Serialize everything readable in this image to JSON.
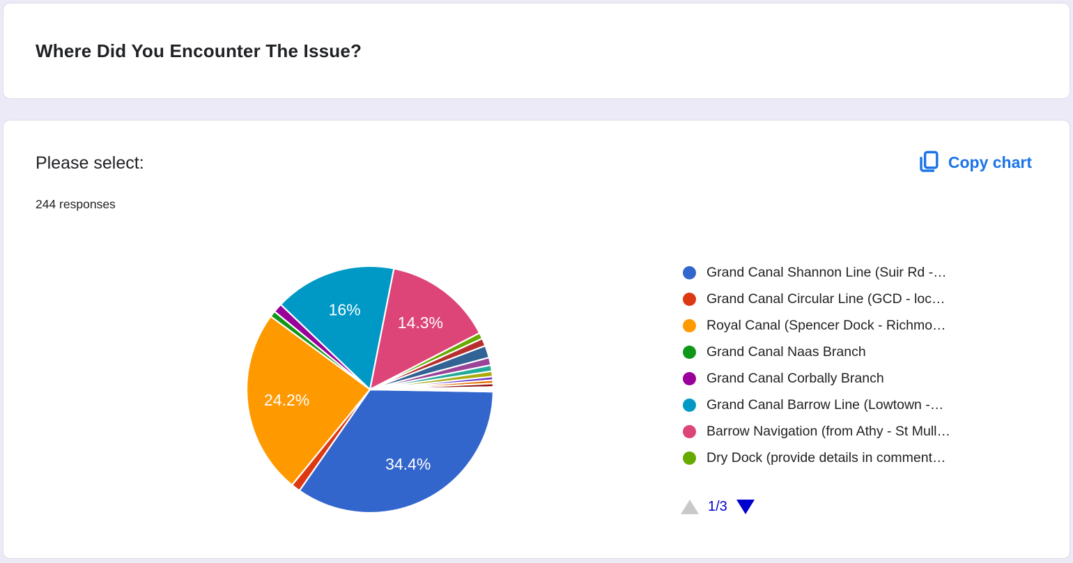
{
  "page": {
    "background": "#ECEAF6",
    "accent_blue": "#1A73E8",
    "pager_blue": "#0000CC",
    "pager_disabled_gray": "#C9C9C9"
  },
  "question_card": {
    "title": "Where Did You Encounter The Issue?"
  },
  "chart_card": {
    "title": "Please select:",
    "responses_count": "244 responses",
    "copy_button_label": "Copy chart"
  },
  "legend": {
    "visible_count": 8,
    "pager": {
      "label": "1/3",
      "current_page": 1,
      "total_pages": 3,
      "prev_enabled": false,
      "next_enabled": true
    }
  },
  "chart_data": {
    "type": "pie",
    "title": "Please select:",
    "total_responses": 244,
    "start_angle_deg": 91,
    "direction": "clockwise",
    "legend_position": "right",
    "slice_separator_color": "#ffffff",
    "slices": [
      {
        "label": "Grand Canal Shannon Line (Suir Rd -…",
        "value": 34.4,
        "color": "#3366CC",
        "data_label": "34.4%"
      },
      {
        "label": "Grand Canal Circular Line (GCD - loc…",
        "value": 1.2,
        "color": "#DC3912",
        "data_label": ""
      },
      {
        "label": "Royal Canal (Spencer Dock - Richmo…",
        "value": 24.2,
        "color": "#FF9900",
        "data_label": "24.2%"
      },
      {
        "label": "Grand Canal Naas Branch",
        "value": 0.8,
        "color": "#109618",
        "data_label": ""
      },
      {
        "label": "Grand Canal Corbally Branch",
        "value": 1.2,
        "color": "#990099",
        "data_label": ""
      },
      {
        "label": "Grand Canal Barrow Line (Lowtown -…",
        "value": 16.0,
        "color": "#0099C6",
        "data_label": "16%"
      },
      {
        "label": "Barrow Navigation (from Athy - St Mull…",
        "value": 14.3,
        "color": "#DD4477",
        "data_label": "14.3%"
      },
      {
        "label": "Dry Dock (provide details in comment…",
        "value": 0.8,
        "color": "#66AA00",
        "data_label": ""
      },
      {
        "label": "",
        "value": 1.0,
        "color": "#B82E2E",
        "data_label": ""
      },
      {
        "label": "",
        "value": 1.6,
        "color": "#316395",
        "data_label": ""
      },
      {
        "label": "",
        "value": 1.0,
        "color": "#994499",
        "data_label": ""
      },
      {
        "label": "",
        "value": 0.8,
        "color": "#22AA99",
        "data_label": ""
      },
      {
        "label": "",
        "value": 0.7,
        "color": "#AAAA11",
        "data_label": ""
      },
      {
        "label": "",
        "value": 0.45,
        "color": "#6633CC",
        "data_label": ""
      },
      {
        "label": "",
        "value": 0.45,
        "color": "#E67300",
        "data_label": ""
      },
      {
        "label": "",
        "value": 0.45,
        "color": "#8B0707",
        "data_label": ""
      },
      {
        "label": "",
        "value": 0.2,
        "color": "#651067",
        "data_label": ""
      },
      {
        "label": "",
        "value": 0.2,
        "color": "#329262",
        "data_label": ""
      },
      {
        "label": "",
        "value": 0.2,
        "color": "#5574A6",
        "data_label": ""
      }
    ]
  }
}
